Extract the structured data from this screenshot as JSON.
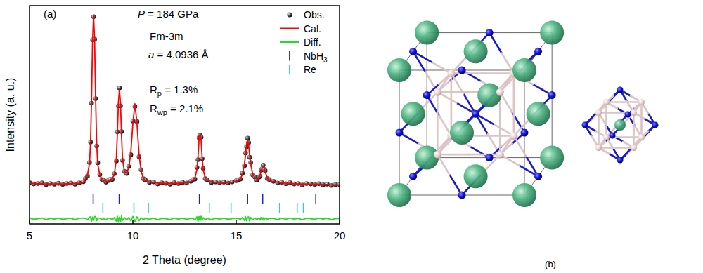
{
  "chart_data": {
    "type": "line",
    "x_label": "2 Theta (degree)",
    "y_label": "Intensity (a. u.)",
    "annotations": [
      "(a)",
      "P = 184 GPa",
      "Fm-3m",
      "a = 4.0936 Å",
      "Rp = 1.3%",
      "Rwp = 2.1%"
    ],
    "xlim": [
      5,
      20
    ],
    "xticks": [
      5,
      10,
      15,
      20
    ],
    "ylim": [
      0,
      100
    ],
    "yticks": [],
    "tick_labels": "x",
    "grid": false,
    "legend": "top-right",
    "x": [
      5.0,
      5.2,
      5.4,
      5.6,
      5.8,
      6.0,
      6.2,
      6.4,
      6.6,
      6.8,
      7.0,
      7.2,
      7.4,
      7.6,
      7.7,
      7.8,
      7.9,
      7.95,
      8.0,
      8.05,
      8.1,
      8.15,
      8.2,
      8.25,
      8.3,
      8.4,
      8.5,
      8.6,
      8.7,
      8.8,
      8.9,
      9.0,
      9.1,
      9.2,
      9.25,
      9.3,
      9.35,
      9.4,
      9.45,
      9.5,
      9.6,
      9.7,
      9.8,
      9.9,
      10.0,
      10.1,
      10.2,
      10.3,
      10.4,
      10.5,
      10.6,
      10.8,
      11.0,
      11.2,
      11.4,
      11.6,
      11.8,
      12.0,
      12.2,
      12.4,
      12.6,
      12.8,
      12.9,
      13.0,
      13.1,
      13.15,
      13.2,
      13.25,
      13.3,
      13.35,
      13.4,
      13.5,
      13.6,
      13.8,
      14.0,
      14.2,
      14.4,
      14.6,
      14.8,
      15.0,
      15.1,
      15.2,
      15.3,
      15.4,
      15.45,
      15.5,
      15.55,
      15.6,
      15.65,
      15.7,
      15.8,
      15.9,
      16.0,
      16.1,
      16.15,
      16.2,
      16.25,
      16.3,
      16.35,
      16.4,
      16.5,
      16.6,
      16.8,
      17.0,
      17.2,
      17.4,
      17.6,
      17.8,
      18.0,
      18.2,
      18.4,
      18.6,
      18.8,
      19.0,
      19.2,
      19.4,
      19.6,
      19.8,
      20.0
    ],
    "series": [
      {
        "name": "Obs.",
        "type": "scatter",
        "marker": "circle",
        "color": "#000000",
        "values": [
          18.9,
          18.3,
          18.5,
          18.8,
          18.0,
          18.5,
          18.2,
          18.6,
          18.1,
          18.5,
          18.7,
          18.2,
          18.8,
          19.3,
          20.7,
          21.9,
          28.1,
          37.5,
          55.3,
          84.3,
          94.9,
          84.6,
          57.4,
          35.7,
          28.0,
          22.6,
          20.3,
          19.9,
          19.1,
          19.8,
          20.4,
          20.3,
          23.0,
          28.8,
          42.2,
          54.0,
          62.3,
          54.1,
          42.3,
          29.1,
          24.0,
          23.1,
          26.3,
          31.7,
          47.1,
          53.8,
          46.9,
          30.8,
          24.8,
          20.7,
          20.1,
          19.0,
          19.2,
          18.3,
          18.8,
          18.6,
          18.2,
          18.9,
          18.5,
          19.0,
          18.7,
          19.5,
          20.3,
          20.5,
          25.9,
          29.4,
          39.5,
          40.6,
          39.7,
          29.9,
          25.5,
          20.7,
          20.2,
          19.0,
          19.2,
          18.8,
          19.1,
          18.7,
          19.2,
          19.8,
          20.2,
          20.5,
          23.2,
          26.7,
          32.5,
          35.4,
          39.3,
          37.2,
          30.5,
          28.1,
          22.4,
          21.5,
          20.1,
          21.4,
          21.8,
          24.6,
          25.2,
          26.9,
          25.0,
          24.4,
          20.8,
          20.3,
          19.5,
          18.7,
          19.1,
          18.4,
          18.9,
          18.3,
          18.5,
          17.8,
          18.5,
          18.3,
          18.0,
          18.4,
          17.9,
          18.2,
          17.6,
          18.0,
          18.0
        ]
      },
      {
        "name": "Cal.",
        "type": "line",
        "line_style": "solid",
        "color": "#ff0000",
        "values": [
          18.6,
          18.5,
          18.4,
          18.4,
          18.3,
          18.3,
          18.3,
          18.3,
          18.3,
          18.4,
          18.4,
          18.5,
          18.6,
          18.9,
          20.5,
          22.3,
          27.5,
          36.5,
          56.5,
          83.5,
          95.5,
          83.5,
          56.5,
          36.5,
          27.5,
          22.3,
          20.5,
          19.8,
          19.4,
          19.6,
          20.0,
          20.8,
          22.4,
          29.8,
          41.0,
          55.5,
          61.5,
          55.5,
          41.0,
          29.8,
          23.5,
          23.5,
          25.7,
          32.6,
          46.0,
          55.0,
          46.0,
          31.6,
          24.4,
          21.0,
          19.9,
          19.2,
          18.9,
          18.7,
          18.6,
          18.5,
          18.5,
          18.5,
          18.6,
          18.7,
          18.9,
          19.3,
          20.0,
          21.0,
          25.0,
          30.5,
          38.5,
          41.5,
          38.5,
          30.5,
          25.0,
          21.0,
          20.0,
          19.3,
          19.0,
          18.9,
          18.8,
          18.9,
          19.1,
          19.5,
          20.0,
          20.8,
          22.6,
          27.5,
          31.5,
          36.3,
          38.6,
          36.3,
          31.5,
          27.5,
          22.8,
          21.2,
          20.4,
          21.0,
          22.3,
          24.0,
          25.6,
          26.4,
          25.6,
          24.0,
          21.0,
          20.0,
          19.3,
          19.0,
          18.8,
          18.6,
          18.5,
          18.4,
          18.3,
          18.2,
          18.2,
          18.2,
          18.2,
          18.1,
          18.0,
          18.0,
          17.9,
          17.9,
          17.8
        ]
      },
      {
        "name": "Diff.",
        "type": "line",
        "line_style": "solid",
        "color": "#22dd22",
        "values": [
          2.6,
          2.1,
          2.4,
          2.7,
          2.0,
          2.5,
          2.2,
          2.6,
          2.1,
          2.4,
          2.6,
          2.0,
          2.5,
          2.7,
          2.5,
          1.9,
          2.9,
          3.3,
          1.1,
          3.1,
          1.7,
          3.4,
          3.2,
          1.5,
          2.8,
          2.6,
          2.1,
          2.4,
          2.0,
          2.5,
          2.7,
          1.8,
          2.9,
          1.3,
          3.5,
          0.8,
          3.1,
          0.9,
          3.6,
          1.6,
          2.8,
          1.9,
          2.9,
          1.4,
          3.4,
          1.1,
          3.2,
          1.5,
          2.7,
          2.0,
          2.5,
          2.1,
          2.6,
          1.9,
          2.5,
          2.4,
          2.0,
          2.7,
          2.2,
          2.6,
          2.1,
          2.5,
          2.6,
          1.8,
          3.2,
          1.2,
          3.3,
          1.4,
          3.5,
          1.7,
          2.8,
          2.0,
          2.5,
          2.0,
          2.5,
          2.2,
          2.6,
          2.1,
          2.4,
          2.6,
          2.5,
          2.0,
          2.9,
          1.5,
          3.3,
          1.4,
          3.0,
          3.2,
          1.3,
          2.9,
          1.9,
          2.6,
          2.0,
          2.7,
          1.8,
          2.9,
          1.9,
          2.8,
          1.7,
          2.7,
          2.1,
          2.6,
          2.5,
          2.0,
          2.6,
          2.1,
          2.7,
          2.2,
          2.5,
          1.9,
          2.6,
          2.4,
          2.1,
          2.6,
          2.2,
          2.5,
          2.0,
          2.4,
          2.5
        ]
      },
      {
        "name": "NbH3",
        "type": "ticks",
        "color": "#2222cc",
        "x": [
          8.08,
          9.34,
          13.22,
          15.55,
          16.28,
          18.85
        ]
      },
      {
        "name": "Re",
        "type": "ticks",
        "color": "#33cccc",
        "x": [
          8.55,
          10.05,
          10.75,
          13.7,
          14.75,
          17.1,
          17.95,
          18.25
        ]
      }
    ]
  },
  "structure": {
    "label": "(b)"
  }
}
